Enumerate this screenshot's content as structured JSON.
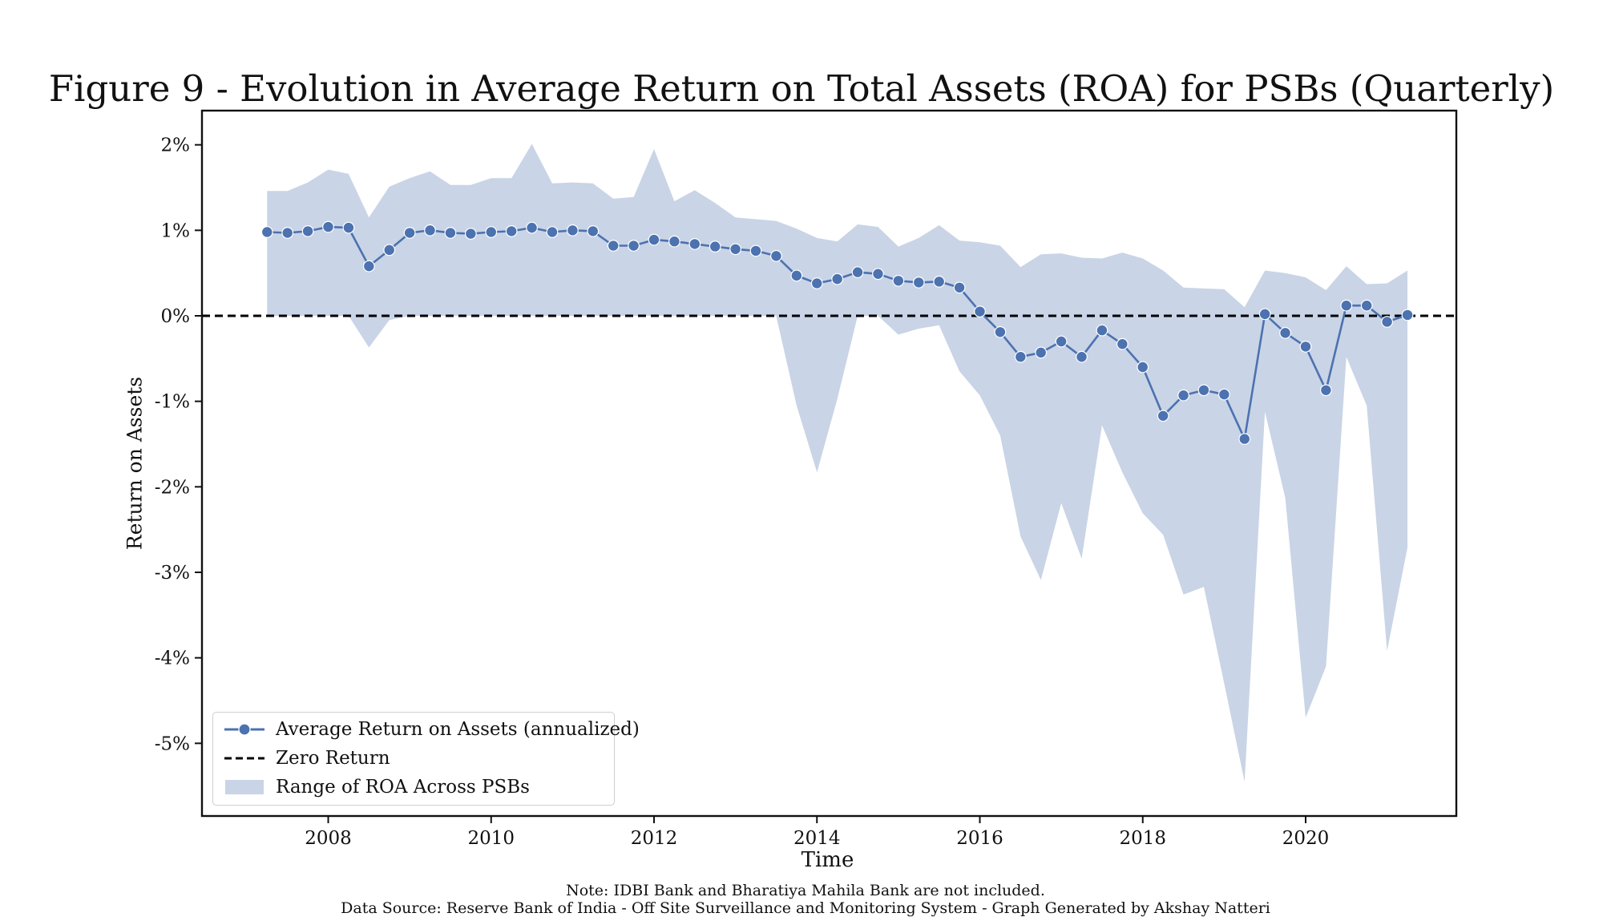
{
  "chart_data": {
    "type": "line",
    "title": "Figure 9 - Evolution in Average Return on Total Assets (ROA) for PSBs (Quarterly)",
    "xlabel": "Time",
    "ylabel": "Return on Assets",
    "x_ticks": [
      "2008",
      "2010",
      "2012",
      "2014",
      "2016",
      "2018",
      "2020"
    ],
    "y_ticks": [
      "2%",
      "1%",
      "0%",
      "-1%",
      "-2%",
      "-3%",
      "-4%",
      "-5%"
    ],
    "xlim": [
      2006.45,
      2021.85
    ],
    "ylim": [
      -5.85,
      2.4
    ],
    "grid": false,
    "legend_position": "lower-left",
    "series": [
      {
        "name": "Average Return on Assets (annualized)",
        "color": "#4C72B0",
        "marker": "circle",
        "x": [
          2007.25,
          2007.5,
          2007.75,
          2008.0,
          2008.25,
          2008.5,
          2008.75,
          2009.0,
          2009.25,
          2009.5,
          2009.75,
          2010.0,
          2010.25,
          2010.5,
          2010.75,
          2011.0,
          2011.25,
          2011.5,
          2011.75,
          2012.0,
          2012.25,
          2012.5,
          2012.75,
          2013.0,
          2013.25,
          2013.5,
          2013.75,
          2014.0,
          2014.25,
          2014.5,
          2014.75,
          2015.0,
          2015.25,
          2015.5,
          2015.75,
          2016.0,
          2016.25,
          2016.5,
          2016.75,
          2017.0,
          2017.25,
          2017.5,
          2017.75,
          2018.0,
          2018.25,
          2018.5,
          2018.75,
          2019.0,
          2019.25,
          2019.5,
          2019.75,
          2020.0,
          2020.25,
          2020.5,
          2020.75,
          2021.0,
          2021.25
        ],
        "y": [
          0.98,
          0.97,
          0.99,
          1.04,
          1.03,
          0.58,
          0.77,
          0.97,
          1.0,
          0.97,
          0.96,
          0.98,
          0.99,
          1.03,
          0.98,
          1.0,
          0.99,
          0.82,
          0.82,
          0.89,
          0.87,
          0.84,
          0.81,
          0.78,
          0.76,
          0.7,
          0.47,
          0.38,
          0.43,
          0.51,
          0.49,
          0.41,
          0.39,
          0.4,
          0.33,
          0.05,
          -0.19,
          -0.48,
          -0.43,
          -0.3,
          -0.48,
          -0.17,
          -0.33,
          -0.6,
          -1.17,
          -0.93,
          -0.87,
          -0.92,
          -1.44,
          0.02,
          -0.2,
          -0.36,
          -0.87,
          0.12,
          0.12,
          -0.07,
          0.01
        ]
      },
      {
        "name": "Zero Return",
        "color": "#000000",
        "style": "dashed",
        "value": 0
      },
      {
        "name": "Range of ROA Across PSBs",
        "color": "#C9D4E6",
        "type": "area",
        "x": [
          2007.25,
          2007.5,
          2007.75,
          2008.0,
          2008.25,
          2008.5,
          2008.75,
          2009.0,
          2009.25,
          2009.5,
          2009.75,
          2010.0,
          2010.25,
          2010.5,
          2010.75,
          2011.0,
          2011.25,
          2011.5,
          2011.75,
          2012.0,
          2012.25,
          2012.5,
          2012.75,
          2013.0,
          2013.25,
          2013.5,
          2013.75,
          2014.0,
          2014.25,
          2014.5,
          2014.75,
          2015.0,
          2015.25,
          2015.5,
          2015.75,
          2016.0,
          2016.25,
          2016.5,
          2016.75,
          2017.0,
          2017.25,
          2017.5,
          2017.75,
          2018.0,
          2018.25,
          2018.5,
          2018.75,
          2019.0,
          2019.25,
          2019.5,
          2019.75,
          2020.0,
          2020.25,
          2020.5,
          2020.75,
          2021.0,
          2021.25
        ],
        "upper": [
          1.46,
          1.46,
          1.56,
          1.71,
          1.66,
          1.15,
          1.51,
          1.61,
          1.69,
          1.53,
          1.53,
          1.61,
          1.61,
          2.01,
          1.55,
          1.56,
          1.55,
          1.37,
          1.39,
          1.95,
          1.34,
          1.47,
          1.32,
          1.15,
          1.13,
          1.11,
          1.02,
          0.91,
          0.87,
          1.07,
          1.04,
          0.81,
          0.91,
          1.06,
          0.88,
          0.86,
          0.82,
          0.57,
          0.72,
          0.73,
          0.68,
          0.67,
          0.74,
          0.67,
          0.53,
          0.33,
          0.32,
          0.31,
          0.1,
          0.53,
          0.5,
          0.45,
          0.3,
          0.58,
          0.37,
          0.38,
          0.53
        ],
        "lower": [
          0.0,
          0.0,
          0.0,
          0.0,
          0.0,
          -0.37,
          -0.05,
          0.0,
          0.0,
          0.0,
          0.0,
          0.0,
          0.0,
          0.0,
          0.0,
          0.0,
          0.0,
          0.0,
          0.0,
          0.0,
          0.0,
          0.0,
          0.0,
          0.0,
          0.0,
          0.0,
          -1.05,
          -1.83,
          -0.97,
          0.0,
          0.0,
          -0.22,
          -0.15,
          -0.11,
          -0.65,
          -0.93,
          -1.4,
          -2.58,
          -3.09,
          -2.19,
          -2.84,
          -1.28,
          -1.83,
          -2.31,
          -2.56,
          -3.26,
          -3.17,
          -4.3,
          -5.45,
          -1.12,
          -2.13,
          -4.7,
          -4.1,
          -0.48,
          -1.05,
          -3.92,
          -2.71
        ]
      }
    ]
  },
  "legend": {
    "avg_label": "Average Return on Assets (annualized)",
    "zero_label": "Zero Return",
    "range_label": "Range of ROA Across PSBs"
  },
  "footer": {
    "note": "Note: IDBI Bank and Bharatiya Mahila Bank are not included.",
    "source": "Data Source: Reserve Bank of India - Off Site Surveillance and Monitoring System - Graph Generated by Akshay Natteri"
  }
}
